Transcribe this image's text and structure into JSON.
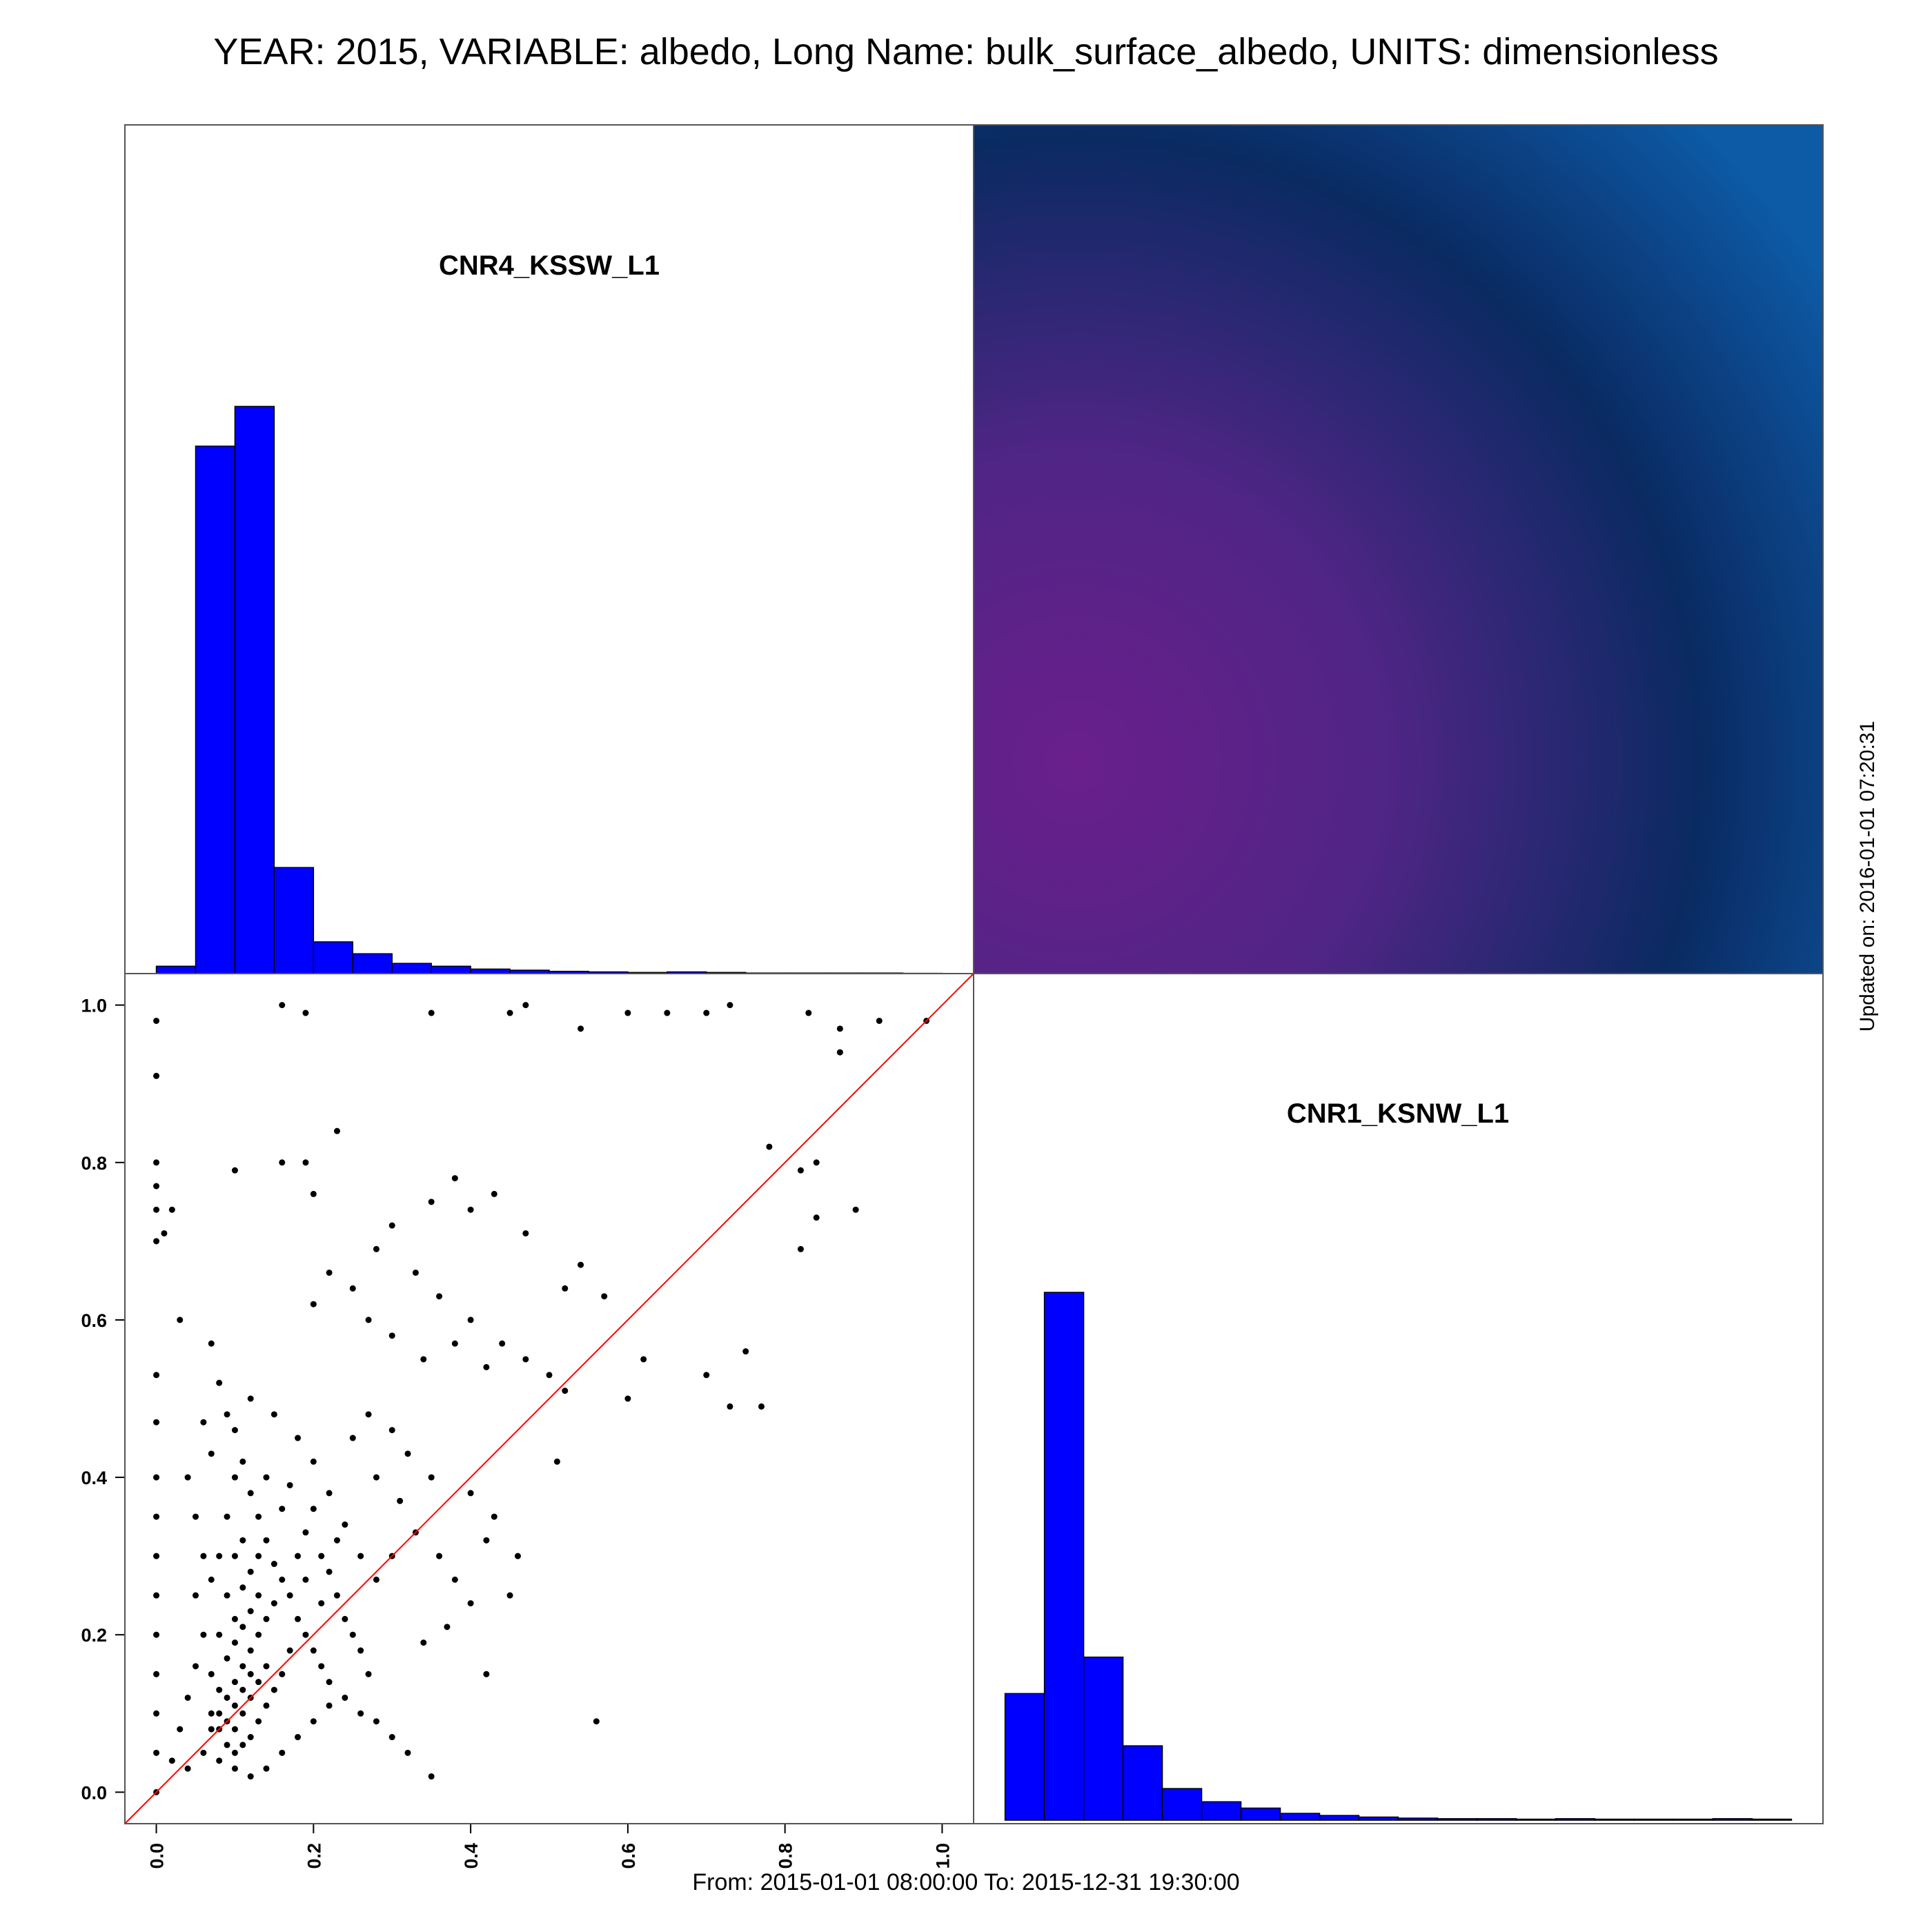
{
  "title": "YEAR: 2015, VARIABLE: albedo, Long Name: bulk_surface_albedo, UNITS: dimensionless",
  "footer": "From: 2015-01-01 08:00:00 To: 2015-12-31 19:30:00",
  "updated": "Updated on: 2016-01-01 07:20:31",
  "colors": {
    "hist_fill": "#0000ff",
    "points": "#000000",
    "identity_line": "#ff0000",
    "correlation_high": "#0a3f7e",
    "correlation_low": "#6a1f8c"
  },
  "chart_data": {
    "type": "scatter-matrix",
    "variables": [
      "CNR4_KSSW_L1",
      "CNR1_KSNW_L1"
    ],
    "panels": {
      "top_left": {
        "type": "histogram",
        "label": "CNR4_KSSW_L1",
        "bins": [
          0.0,
          0.05,
          0.1,
          0.15,
          0.2,
          0.25,
          0.3,
          0.35,
          0.4,
          0.45,
          0.5,
          0.55,
          0.6,
          0.65,
          0.7,
          0.75,
          0.8,
          0.85,
          0.9,
          0.95,
          1.0
        ],
        "relative_heights": [
          0.013,
          0.93,
          1.0,
          0.187,
          0.056,
          0.035,
          0.018,
          0.013,
          0.008,
          0.006,
          0.004,
          0.003,
          0.002,
          0.003,
          0.002,
          0.001,
          0.001,
          0.001,
          0.001,
          0.0005
        ]
      },
      "bottom_right": {
        "type": "histogram",
        "label": "CNR1_KSNW_L1",
        "bins": [
          0.0,
          0.05,
          0.1,
          0.15,
          0.2,
          0.25,
          0.3,
          0.35,
          0.4,
          0.45,
          0.5,
          0.55,
          0.6,
          0.65,
          0.7,
          0.75,
          0.8,
          0.85,
          0.9,
          0.95,
          1.0
        ],
        "relative_heights": [
          0.24,
          1.0,
          0.309,
          0.141,
          0.06,
          0.035,
          0.023,
          0.013,
          0.009,
          0.006,
          0.004,
          0.003,
          0.003,
          0.002,
          0.003,
          0.002,
          0.002,
          0.002,
          0.003,
          0.002
        ]
      },
      "top_right": {
        "type": "correlation-heatmap",
        "colormap": "purple-to-blue gradient"
      },
      "bottom_left": {
        "type": "scatter",
        "x_variable": "CNR4_KSSW_L1",
        "y_variable": "CNR1_KSNW_L1",
        "xlim": [
          -0.04,
          1.04
        ],
        "ylim": [
          -0.04,
          1.04
        ],
        "x_ticks": [
          0.0,
          0.2,
          0.4,
          0.6,
          0.8,
          1.0
        ],
        "y_ticks": [
          0.0,
          0.2,
          0.4,
          0.6,
          0.8,
          1.0
        ],
        "x_tick_labels": [
          "0.0",
          "0.2",
          "0.4",
          "0.6",
          "0.8",
          "1.0"
        ],
        "y_tick_labels": [
          "0.0",
          "0.2",
          "0.4",
          "0.6",
          "0.8",
          "1.0"
        ],
        "identity_line": true,
        "points": [
          [
            0.0,
            0.98
          ],
          [
            0.0,
            0.91
          ],
          [
            0.0,
            0.8
          ],
          [
            0.0,
            0.77
          ],
          [
            0.0,
            0.74
          ],
          [
            0.0,
            0.7
          ],
          [
            0.01,
            0.71
          ],
          [
            0.02,
            0.74
          ],
          [
            0.03,
            0.6
          ],
          [
            0.0,
            0.53
          ],
          [
            0.0,
            0.47
          ],
          [
            0.0,
            0.4
          ],
          [
            0.0,
            0.35
          ],
          [
            0.0,
            0.3
          ],
          [
            0.0,
            0.25
          ],
          [
            0.0,
            0.2
          ],
          [
            0.0,
            0.15
          ],
          [
            0.0,
            0.1
          ],
          [
            0.0,
            0.05
          ],
          [
            0.0,
            0.0
          ],
          [
            0.16,
            1.0
          ],
          [
            0.19,
            0.99
          ],
          [
            0.1,
            0.79
          ],
          [
            0.16,
            0.8
          ],
          [
            0.19,
            0.8
          ],
          [
            0.2,
            0.76
          ],
          [
            0.23,
            0.84
          ],
          [
            0.35,
            0.99
          ],
          [
            0.45,
            0.99
          ],
          [
            0.47,
            1.0
          ],
          [
            0.54,
            0.97
          ],
          [
            0.6,
            0.99
          ],
          [
            0.65,
            0.99
          ],
          [
            0.7,
            0.99
          ],
          [
            0.73,
            1.0
          ],
          [
            0.83,
            0.99
          ],
          [
            0.87,
            0.97
          ],
          [
            0.92,
            0.98
          ],
          [
            0.98,
            0.98
          ],
          [
            0.87,
            0.94
          ],
          [
            0.78,
            0.82
          ],
          [
            0.82,
            0.79
          ],
          [
            0.84,
            0.8
          ],
          [
            0.84,
            0.73
          ],
          [
            0.89,
            0.74
          ],
          [
            0.82,
            0.69
          ],
          [
            0.54,
            0.67
          ],
          [
            0.57,
            0.63
          ],
          [
            0.52,
            0.64
          ],
          [
            0.47,
            0.71
          ],
          [
            0.43,
            0.76
          ],
          [
            0.4,
            0.74
          ],
          [
            0.38,
            0.78
          ],
          [
            0.35,
            0.75
          ],
          [
            0.3,
            0.72
          ],
          [
            0.28,
            0.69
          ],
          [
            0.33,
            0.66
          ],
          [
            0.36,
            0.63
          ],
          [
            0.4,
            0.6
          ],
          [
            0.44,
            0.57
          ],
          [
            0.47,
            0.55
          ],
          [
            0.5,
            0.53
          ],
          [
            0.42,
            0.54
          ],
          [
            0.38,
            0.57
          ],
          [
            0.34,
            0.55
          ],
          [
            0.3,
            0.58
          ],
          [
            0.27,
            0.6
          ],
          [
            0.25,
            0.64
          ],
          [
            0.22,
            0.66
          ],
          [
            0.2,
            0.62
          ],
          [
            0.6,
            0.5
          ],
          [
            0.62,
            0.55
          ],
          [
            0.7,
            0.53
          ],
          [
            0.73,
            0.49
          ],
          [
            0.75,
            0.56
          ],
          [
            0.77,
            0.49
          ],
          [
            0.52,
            0.51
          ],
          [
            0.56,
            0.09
          ],
          [
            0.51,
            0.42
          ],
          [
            0.46,
            0.3
          ],
          [
            0.45,
            0.25
          ],
          [
            0.38,
            0.27
          ],
          [
            0.36,
            0.3
          ],
          [
            0.42,
            0.32
          ],
          [
            0.43,
            0.35
          ],
          [
            0.4,
            0.38
          ],
          [
            0.35,
            0.4
          ],
          [
            0.32,
            0.43
          ],
          [
            0.3,
            0.46
          ],
          [
            0.27,
            0.48
          ],
          [
            0.25,
            0.45
          ],
          [
            0.28,
            0.4
          ],
          [
            0.31,
            0.37
          ],
          [
            0.33,
            0.33
          ],
          [
            0.3,
            0.3
          ],
          [
            0.28,
            0.27
          ],
          [
            0.26,
            0.3
          ],
          [
            0.24,
            0.34
          ],
          [
            0.22,
            0.38
          ],
          [
            0.2,
            0.42
          ],
          [
            0.18,
            0.45
          ],
          [
            0.15,
            0.48
          ],
          [
            0.12,
            0.5
          ],
          [
            0.1,
            0.46
          ],
          [
            0.11,
            0.42
          ],
          [
            0.12,
            0.38
          ],
          [
            0.13,
            0.35
          ],
          [
            0.14,
            0.32
          ],
          [
            0.15,
            0.29
          ],
          [
            0.16,
            0.27
          ],
          [
            0.17,
            0.25
          ],
          [
            0.18,
            0.22
          ],
          [
            0.19,
            0.2
          ],
          [
            0.2,
            0.18
          ],
          [
            0.21,
            0.16
          ],
          [
            0.22,
            0.14
          ],
          [
            0.24,
            0.12
          ],
          [
            0.26,
            0.1
          ],
          [
            0.28,
            0.09
          ],
          [
            0.3,
            0.07
          ],
          [
            0.32,
            0.05
          ],
          [
            0.35,
            0.02
          ],
          [
            0.34,
            0.19
          ],
          [
            0.42,
            0.15
          ],
          [
            0.37,
            0.21
          ],
          [
            0.4,
            0.24
          ],
          [
            0.05,
            0.25
          ],
          [
            0.06,
            0.3
          ],
          [
            0.05,
            0.35
          ],
          [
            0.04,
            0.4
          ],
          [
            0.07,
            0.43
          ],
          [
            0.06,
            0.47
          ],
          [
            0.08,
            0.52
          ],
          [
            0.07,
            0.57
          ],
          [
            0.09,
            0.48
          ],
          [
            0.1,
            0.4
          ],
          [
            0.09,
            0.35
          ],
          [
            0.08,
            0.3
          ],
          [
            0.07,
            0.27
          ],
          [
            0.06,
            0.2
          ],
          [
            0.05,
            0.16
          ],
          [
            0.04,
            0.12
          ],
          [
            0.03,
            0.08
          ],
          [
            0.02,
            0.04
          ],
          [
            0.04,
            0.03
          ],
          [
            0.06,
            0.05
          ],
          [
            0.07,
            0.08
          ],
          [
            0.08,
            0.1
          ],
          [
            0.09,
            0.12
          ],
          [
            0.1,
            0.14
          ],
          [
            0.11,
            0.16
          ],
          [
            0.12,
            0.18
          ],
          [
            0.13,
            0.2
          ],
          [
            0.14,
            0.22
          ],
          [
            0.15,
            0.24
          ],
          [
            0.09,
            0.06
          ],
          [
            0.1,
            0.08
          ],
          [
            0.11,
            0.1
          ],
          [
            0.12,
            0.12
          ],
          [
            0.13,
            0.14
          ],
          [
            0.14,
            0.16
          ],
          [
            0.08,
            0.04
          ],
          [
            0.1,
            0.03
          ],
          [
            0.12,
            0.02
          ],
          [
            0.14,
            0.03
          ],
          [
            0.16,
            0.05
          ],
          [
            0.18,
            0.07
          ],
          [
            0.2,
            0.09
          ],
          [
            0.22,
            0.11
          ],
          [
            0.1,
            0.22
          ],
          [
            0.11,
            0.26
          ],
          [
            0.12,
            0.28
          ],
          [
            0.13,
            0.3
          ],
          [
            0.11,
            0.32
          ],
          [
            0.1,
            0.3
          ],
          [
            0.09,
            0.25
          ],
          [
            0.08,
            0.2
          ],
          [
            0.07,
            0.15
          ],
          [
            0.08,
            0.13
          ],
          [
            0.09,
            0.17
          ],
          [
            0.1,
            0.19
          ],
          [
            0.11,
            0.21
          ],
          [
            0.12,
            0.23
          ],
          [
            0.13,
            0.25
          ],
          [
            0.07,
            0.1
          ],
          [
            0.08,
            0.08
          ],
          [
            0.09,
            0.09
          ],
          [
            0.1,
            0.11
          ],
          [
            0.11,
            0.13
          ],
          [
            0.12,
            0.15
          ],
          [
            0.1,
            0.05
          ],
          [
            0.11,
            0.06
          ],
          [
            0.12,
            0.07
          ],
          [
            0.13,
            0.09
          ],
          [
            0.14,
            0.11
          ],
          [
            0.15,
            0.13
          ],
          [
            0.16,
            0.15
          ],
          [
            0.17,
            0.18
          ],
          [
            0.18,
            0.3
          ],
          [
            0.19,
            0.33
          ],
          [
            0.2,
            0.36
          ],
          [
            0.21,
            0.3
          ],
          [
            0.22,
            0.28
          ],
          [
            0.23,
            0.25
          ],
          [
            0.24,
            0.22
          ],
          [
            0.25,
            0.2
          ],
          [
            0.26,
            0.18
          ],
          [
            0.27,
            0.15
          ],
          [
            0.16,
            0.36
          ],
          [
            0.14,
            0.4
          ],
          [
            0.17,
            0.39
          ],
          [
            0.19,
            0.27
          ],
          [
            0.21,
            0.24
          ],
          [
            0.23,
            0.32
          ]
        ]
      }
    }
  }
}
